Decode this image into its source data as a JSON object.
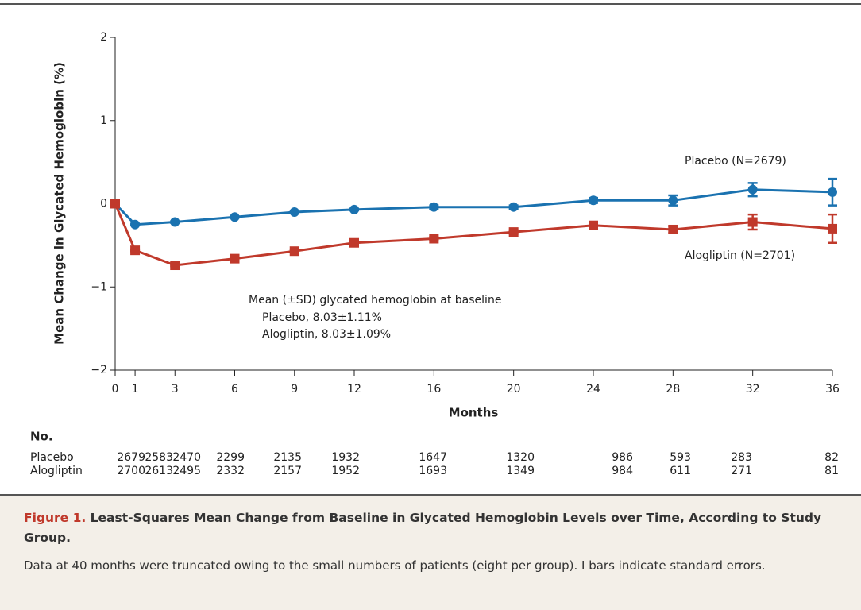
{
  "chart_data": {
    "type": "line",
    "y_label": "Mean Change in Glycated Hemoglobin (%)",
    "x_label": "Months",
    "x": [
      0,
      1,
      3,
      6,
      9,
      12,
      16,
      20,
      24,
      28,
      32,
      36
    ],
    "xlim": [
      0,
      36
    ],
    "xticks": [
      0,
      1,
      3,
      6,
      9,
      12,
      16,
      20,
      24,
      28,
      32,
      36
    ],
    "ylim": [
      -2,
      2
    ],
    "yticks": [
      {
        "value": -2,
        "label": "−2"
      },
      {
        "value": -1,
        "label": "−1"
      },
      0,
      1,
      2
    ],
    "series": [
      {
        "name": "Placebo (N=2679)",
        "color": "#1a72b0",
        "marker": "circle",
        "values": [
          0,
          -0.25,
          -0.22,
          -0.16,
          -0.1,
          -0.07,
          -0.04,
          -0.04,
          0.04,
          0.04,
          0.17,
          0.14
        ],
        "errors": [
          0,
          0.01,
          0.01,
          0.01,
          0.01,
          0.01,
          0.02,
          0.02,
          0.03,
          0.06,
          0.08,
          0.16
        ]
      },
      {
        "name": "Alogliptin (N=2701)",
        "color": "#c0392b",
        "marker": "square",
        "values": [
          0,
          -0.56,
          -0.74,
          -0.66,
          -0.57,
          -0.47,
          -0.42,
          -0.34,
          -0.26,
          -0.31,
          -0.22,
          -0.3
        ],
        "errors": [
          0,
          0.01,
          0.01,
          0.01,
          0.01,
          0.02,
          0.02,
          0.02,
          0.03,
          0.04,
          0.09,
          0.17
        ]
      }
    ],
    "annotation": [
      "Mean (±SD) glycated hemoglobin at baseline",
      "Placebo, 8.03±1.11%",
      "Alogliptin, 8.03±1.09%"
    ],
    "at_risk": {
      "title": "No.",
      "rows": [
        {
          "name": "Placebo",
          "values": [
            2679,
            2583,
            2470,
            2299,
            2135,
            1932,
            1647,
            1320,
            986,
            593,
            283,
            82
          ]
        },
        {
          "name": "Alogliptin",
          "values": [
            2700,
            2613,
            2495,
            2332,
            2157,
            1952,
            1693,
            1349,
            984,
            611,
            271,
            81
          ]
        }
      ]
    }
  },
  "caption": {
    "label": "Figure 1.",
    "title": "Least-Squares Mean Change from Baseline in Glycated Hemoglobin Levels over Time, According to Study Group.",
    "text": "Data at 40 months were truncated owing to the small numbers of patients (eight per group). I bars indicate standard errors."
  }
}
